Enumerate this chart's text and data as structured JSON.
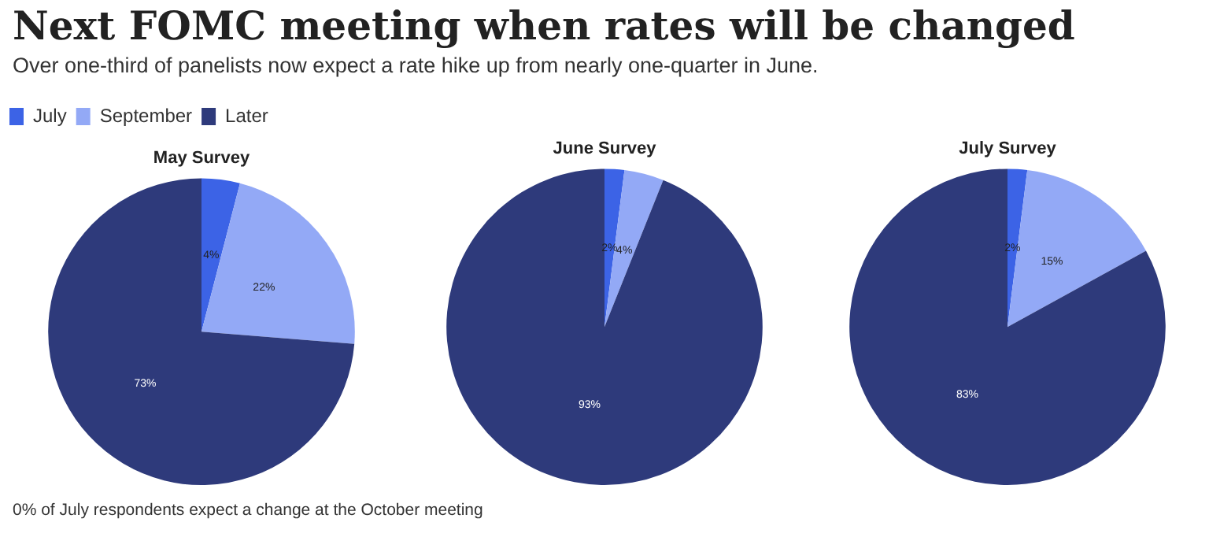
{
  "chart_data": [
    {
      "type": "other",
      "title": "Next FOMC meeting when rates will be changed",
      "subtitle": "Over one-third of panelists now expect a rate hike up from nearly one-quarter in June.",
      "annotations": [
        "0% of July respondents expect a change at the October meeting"
      ]
    },
    {
      "type": "pie",
      "title": "May Survey",
      "categories": [
        "July",
        "September",
        "Later"
      ],
      "values": [
        4,
        22,
        73
      ],
      "value_labels": [
        "4%",
        "22%",
        "73%"
      ],
      "colors": [
        "#3c63e6",
        "#93a9f6",
        "#2e3a7b"
      ],
      "legend": "top left"
    },
    {
      "type": "pie",
      "title": "June Survey",
      "categories": [
        null,
        null,
        null
      ],
      "values": [
        2,
        4,
        93
      ],
      "value_labels": [
        "2%",
        "4%",
        "93%"
      ],
      "colors": [
        "#3c63e6",
        "#93a9f6",
        "#2e3a7b"
      ]
    },
    {
      "type": "pie",
      "title": "July Survey",
      "categories": [
        null,
        null,
        null
      ],
      "values": [
        2,
        15,
        83
      ],
      "value_labels": [
        "2%",
        "15%",
        "83%"
      ],
      "colors": [
        "#3c63e6",
        "#93a9f6",
        "#2e3a7b"
      ]
    }
  ]
}
